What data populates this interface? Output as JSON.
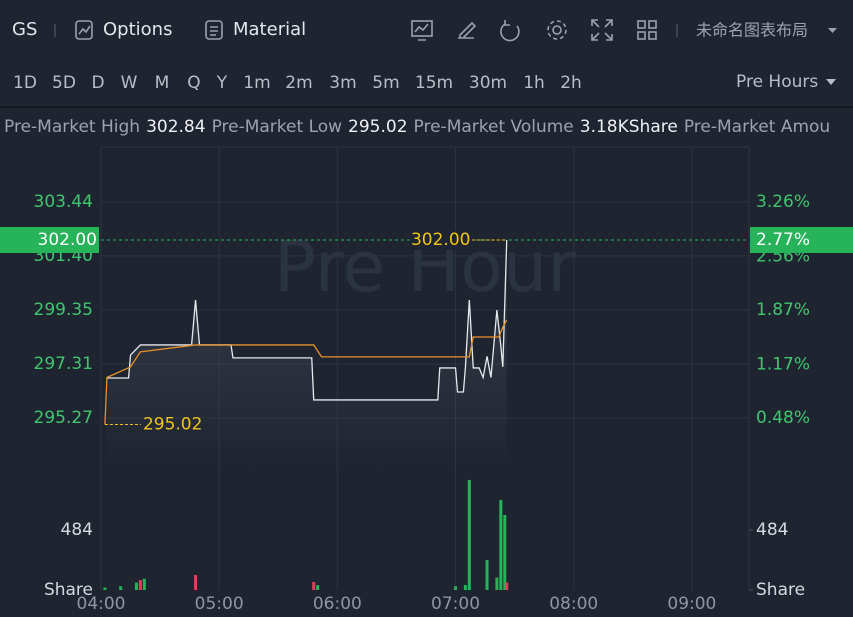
{
  "toolbar": {
    "symbol": "GS",
    "buttons": [
      "Options",
      "Material"
    ],
    "layout_name": "未命名图表布局"
  },
  "intervals": {
    "items": [
      "1D",
      "5D",
      "D",
      "W",
      "M",
      "Q",
      "Y",
      "1m",
      "2m",
      "3m",
      "5m",
      "15m",
      "30m",
      "1h",
      "2h"
    ],
    "active_index": 0
  },
  "session": "Pre Hours",
  "info": [
    {
      "label": "Pre-Market High",
      "value": "302.84"
    },
    {
      "label": "Pre-Market Low",
      "value": "295.02"
    },
    {
      "label": "Pre-Market Volume",
      "value": "3.18KShare"
    },
    {
      "label": "Pre-Market Amou"
    }
  ],
  "chart_data": [
    {
      "type": "line",
      "watermark": "Pre Hour",
      "xlim": [
        "04:00",
        "09:29"
      ],
      "xticks": [
        "04:00",
        "05:00",
        "06:00",
        "07:00",
        "08:00",
        "09:00"
      ],
      "ylim": [
        293.3,
        305.48
      ],
      "yticks": [
        {
          "value": 295.27,
          "label": "295.27"
        },
        {
          "value": 297.31,
          "label": "297.31"
        },
        {
          "value": 299.35,
          "label": "299.35"
        },
        {
          "value": 301.4,
          "label": "301.40"
        },
        {
          "value": 303.44,
          "label": "303.44"
        }
      ],
      "y2lim": [
        -0.19,
        3.955
      ],
      "y2ticks": [
        {
          "value": 0.48,
          "label": "0.48%"
        },
        {
          "value": 1.17,
          "label": "1.17%"
        },
        {
          "value": 1.87,
          "label": "1.87%"
        },
        {
          "value": 2.56,
          "label": "2.56%"
        },
        {
          "value": 3.26,
          "label": "3.26%"
        }
      ],
      "grid": true,
      "series": [
        {
          "color": "#e6e8ec",
          "x": [
            "04:03",
            "04:14",
            "04:15",
            "04:20",
            "04:46",
            "04:48",
            "04:50",
            "05:06",
            "05:07",
            "05:47",
            "05:48",
            "06:51",
            "06:52",
            "07:00",
            "07:01",
            "07:04",
            "07:05",
            "07:07",
            "07:09",
            "07:12",
            "07:14",
            "07:16",
            "07:18",
            "07:21",
            "07:23",
            "07:24",
            "07:26"
          ],
          "values": [
            296.78,
            296.78,
            297.65,
            298.03,
            298.03,
            299.73,
            298.03,
            298.03,
            297.54,
            297.54,
            295.95,
            295.95,
            297.16,
            297.16,
            296.25,
            296.25,
            297.16,
            299.73,
            297.16,
            297.16,
            296.8,
            297.6,
            296.8,
            299.35,
            298.0,
            297.2,
            302.0
          ]
        },
        {
          "color": "#e8902a",
          "x": [
            "04:02",
            "04:03",
            "04:15",
            "04:20",
            "04:48",
            "05:48",
            "05:52",
            "07:07",
            "07:09",
            "07:22",
            "07:24",
            "07:26"
          ],
          "values": [
            295.02,
            296.8,
            297.2,
            297.77,
            298.03,
            298.03,
            297.58,
            297.58,
            298.33,
            298.33,
            298.7,
            298.98
          ]
        }
      ],
      "current": {
        "value": 302.0,
        "label": "302.00",
        "percent": {
          "value": 2.77,
          "label": "2.77%"
        },
        "color": "#27b35a"
      },
      "low": {
        "value": 295.02,
        "label": "295.02"
      }
    },
    {
      "type": "bar",
      "xlim": [
        "04:00",
        "09:29"
      ],
      "ylim": [
        0,
        968
      ],
      "yticks": [
        {
          "value": 0,
          "label": "Share"
        },
        484
      ],
      "x": [
        "04:02",
        "04:10",
        "04:18",
        "04:20",
        "04:22",
        "04:48",
        "05:48",
        "05:50",
        "07:00",
        "07:05",
        "07:07",
        "07:16",
        "07:21",
        "07:23",
        "07:25",
        "07:26"
      ],
      "values": [
        20,
        30,
        60,
        80,
        90,
        121,
        65,
        40,
        30,
        40,
        888,
        242,
        100,
        726,
        605,
        60
      ],
      "colors": [
        "#27b35a",
        "#27b35a",
        "#27b35a",
        "#e0405a",
        "#27b35a",
        "#e0405a",
        "#e0405a",
        "#27b35a",
        "#27b35a",
        "#27b35a",
        "#27b35a",
        "#27b35a",
        "#27b35a",
        "#27b35a",
        "#27b35a",
        "#e0405a"
      ]
    }
  ]
}
